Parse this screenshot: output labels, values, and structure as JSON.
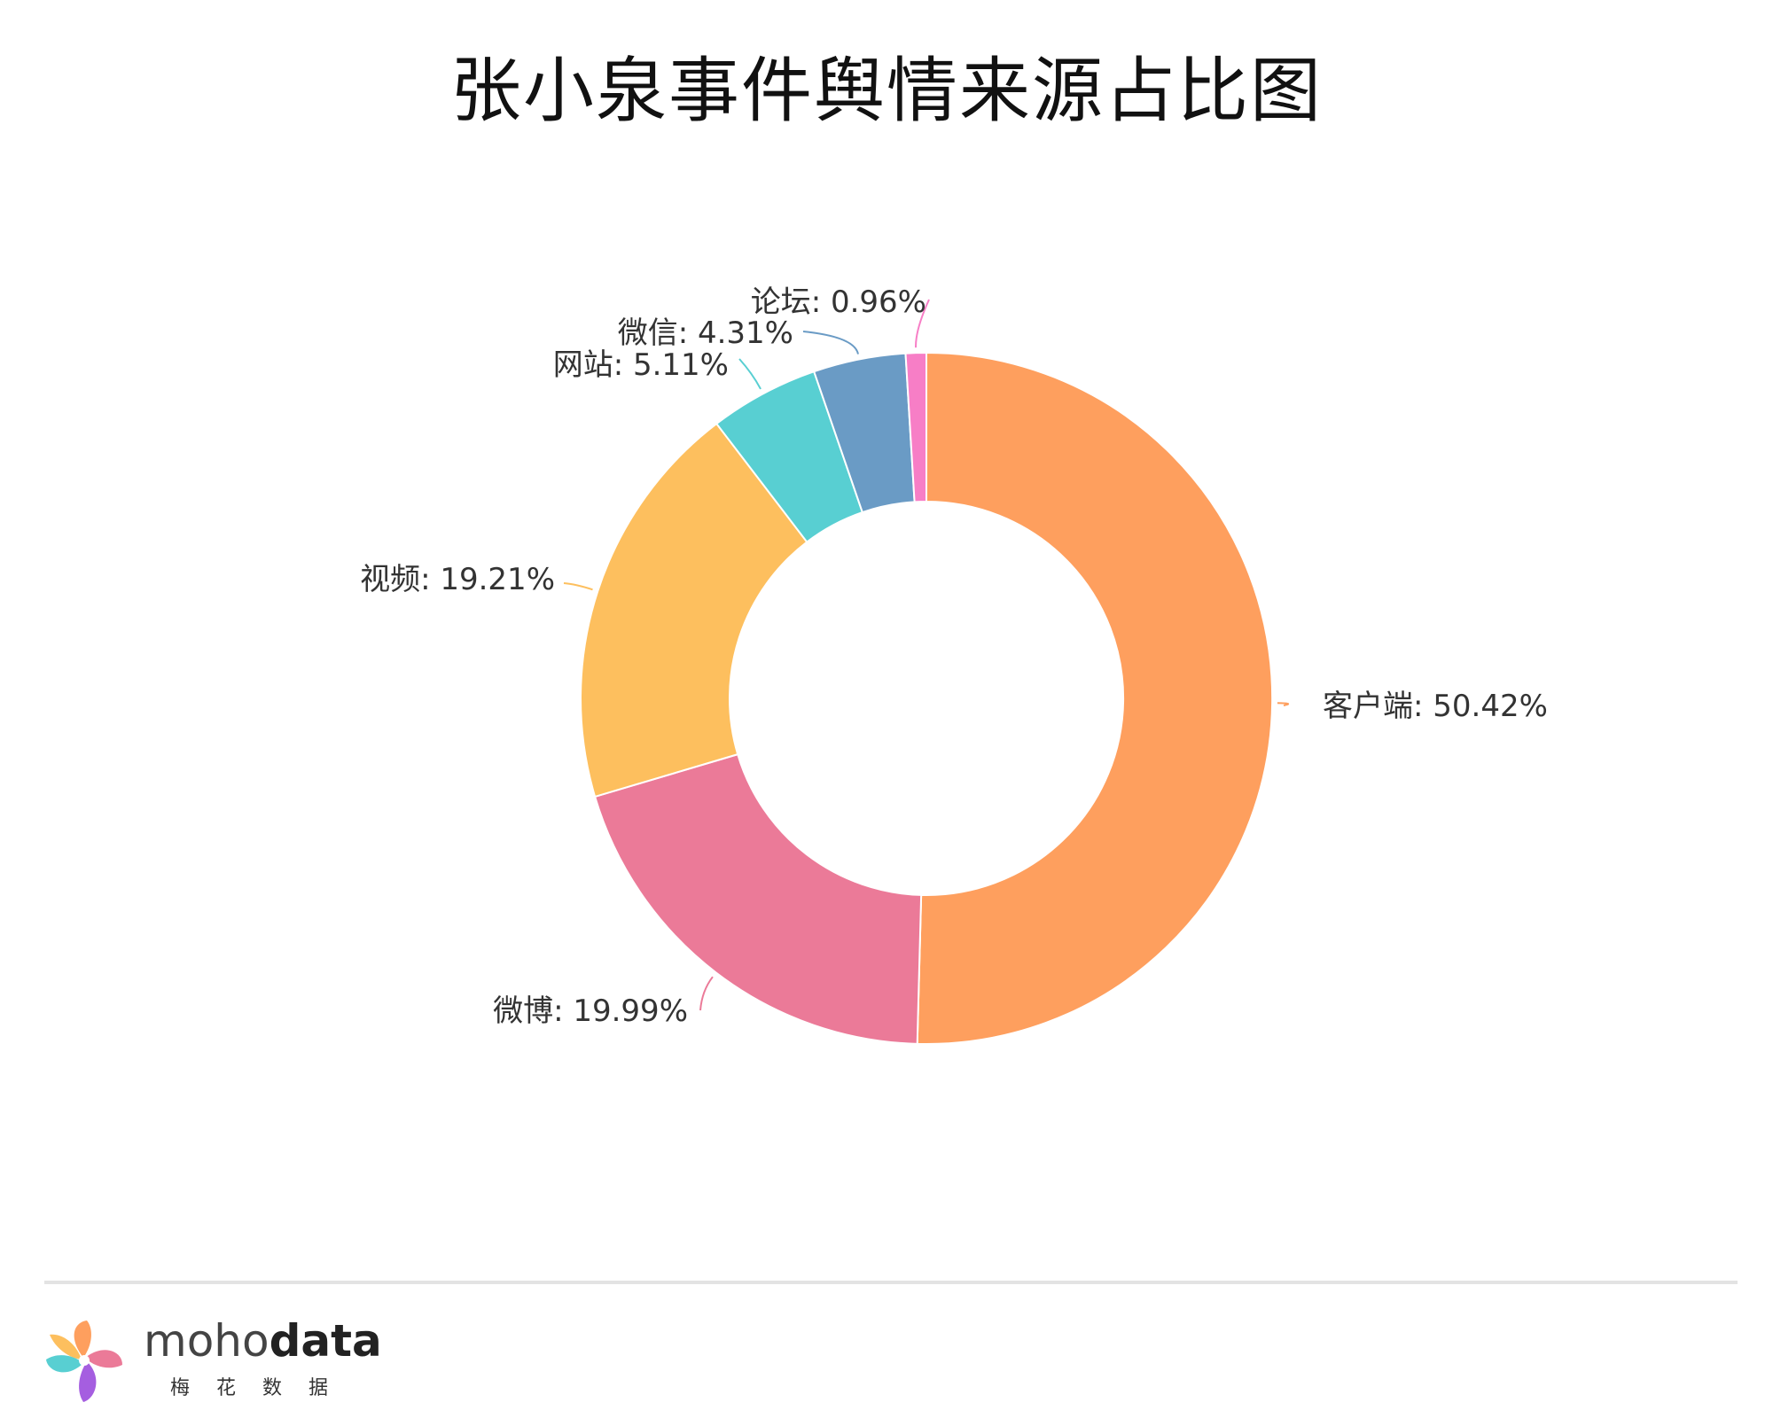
{
  "chart_data": {
    "type": "pie",
    "title": "张小泉事件舆情来源占比图",
    "slices": [
      {
        "label": "客户端: 50.42%",
        "value": 50.42,
        "color": "#fe9f5e"
      },
      {
        "label": "微博: 19.99%",
        "value": 19.99,
        "color": "#eb7a98"
      },
      {
        "label": "视频: 19.21%",
        "value": 19.21,
        "color": "#fdbf5e"
      },
      {
        "label": "网站: 5.11%",
        "value": 5.11,
        "color": "#58cfd2"
      },
      {
        "label": "微信: 4.31%",
        "value": 4.31,
        "color": "#6a9bc5"
      },
      {
        "label": "论坛: 0.96%",
        "value": 0.96,
        "color": "#f77ec6"
      }
    ]
  },
  "footer": {
    "brand_light": "moho",
    "brand_bold": "data",
    "brand_sub": "梅花数据"
  }
}
